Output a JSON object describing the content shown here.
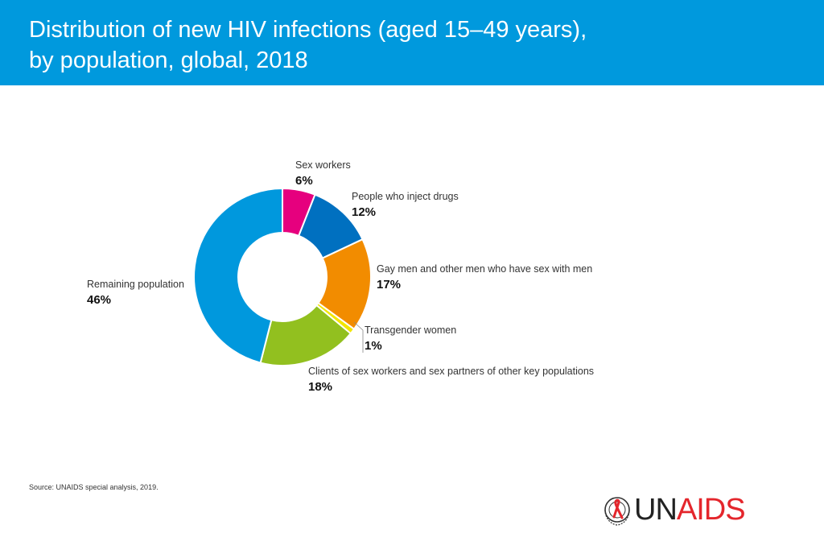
{
  "header": {
    "title_line1": "Distribution of new HIV infections (aged 15–49 years),",
    "title_line2": "by population, global, 2018"
  },
  "chart_data": {
    "type": "pie",
    "variant": "donut",
    "labels": [
      "Sex workers",
      "People who inject drugs",
      "Gay men and other men who have sex with men",
      "Transgender women",
      "Clients of sex workers and sex  partners of other key populations",
      "Remaining  population"
    ],
    "value_labels": [
      "6%",
      "12%",
      "17%",
      "1%",
      "18%",
      "46%"
    ],
    "values": [
      6,
      12,
      17,
      1,
      18,
      46
    ],
    "colors": [
      "#e6007e",
      "#0070c0",
      "#f28c00",
      "#f2e600",
      "#92c01f",
      "#0098dd"
    ],
    "legend": "none"
  },
  "footer": {
    "source": "Source: UNAIDS special analysis, 2019."
  },
  "logo": {
    "un": "UN",
    "aids": "AIDS",
    "icon": "un-emblem-red-ribbon-icon"
  }
}
